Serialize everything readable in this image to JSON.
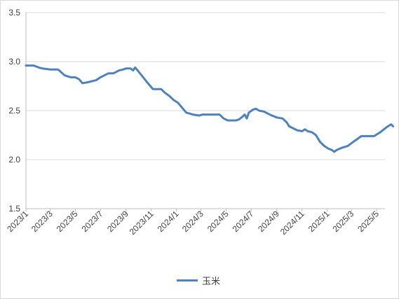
{
  "chart_data": {
    "type": "line",
    "title": "",
    "xlabel": "",
    "ylabel": "",
    "ylim": [
      1.5,
      3.5
    ],
    "y_ticks": [
      "1.5",
      "2.0",
      "2.5",
      "3.0",
      "3.5"
    ],
    "x_tick_labels": [
      "2023/1",
      "2023/3",
      "2023/5",
      "2023/7",
      "2023/9",
      "2023/11",
      "2024/1",
      "2024/3",
      "2024/5",
      "2024/7",
      "2024/9",
      "2024/11",
      "2025/1",
      "2025/3",
      "2025/5"
    ],
    "grid": "horizontal",
    "legend_position": "bottom",
    "series": [
      {
        "name": "玉米",
        "color": "#4f81bd",
        "points": [
          [
            "2023-01-01",
            2.96
          ],
          [
            "2023-01-20",
            2.96
          ],
          [
            "2023-02-01",
            2.94
          ],
          [
            "2023-02-10",
            2.93
          ],
          [
            "2023-03-01",
            2.92
          ],
          [
            "2023-03-20",
            2.92
          ],
          [
            "2023-03-28",
            2.89
          ],
          [
            "2023-04-05",
            2.86
          ],
          [
            "2023-04-20",
            2.84
          ],
          [
            "2023-05-01",
            2.84
          ],
          [
            "2023-05-10",
            2.82
          ],
          [
            "2023-05-18",
            2.78
          ],
          [
            "2023-06-01",
            2.79
          ],
          [
            "2023-06-10",
            2.8
          ],
          [
            "2023-06-20",
            2.81
          ],
          [
            "2023-07-01",
            2.84
          ],
          [
            "2023-07-20",
            2.88
          ],
          [
            "2023-08-01",
            2.88
          ],
          [
            "2023-08-15",
            2.91
          ],
          [
            "2023-08-25",
            2.92
          ],
          [
            "2023-09-01",
            2.93
          ],
          [
            "2023-09-12",
            2.93
          ],
          [
            "2023-09-18",
            2.91
          ],
          [
            "2023-09-23",
            2.94
          ],
          [
            "2023-10-01",
            2.9
          ],
          [
            "2023-10-20",
            2.8
          ],
          [
            "2023-11-05",
            2.72
          ],
          [
            "2023-11-25",
            2.72
          ],
          [
            "2023-12-05",
            2.68
          ],
          [
            "2023-12-15",
            2.65
          ],
          [
            "2023-12-25",
            2.61
          ],
          [
            "2024-01-05",
            2.58
          ],
          [
            "2024-01-15",
            2.53
          ],
          [
            "2024-01-25",
            2.48
          ],
          [
            "2024-02-10",
            2.46
          ],
          [
            "2024-02-25",
            2.45
          ],
          [
            "2024-03-05",
            2.46
          ],
          [
            "2024-03-25",
            2.46
          ],
          [
            "2024-04-15",
            2.46
          ],
          [
            "2024-04-25",
            2.42
          ],
          [
            "2024-05-05",
            2.4
          ],
          [
            "2024-05-25",
            2.4
          ],
          [
            "2024-06-01",
            2.41
          ],
          [
            "2024-06-10",
            2.44
          ],
          [
            "2024-06-15",
            2.46
          ],
          [
            "2024-06-20",
            2.42
          ],
          [
            "2024-06-25",
            2.48
          ],
          [
            "2024-07-05",
            2.51
          ],
          [
            "2024-07-12",
            2.52
          ],
          [
            "2024-07-20",
            2.5
          ],
          [
            "2024-08-01",
            2.49
          ],
          [
            "2024-08-10",
            2.47
          ],
          [
            "2024-08-20",
            2.45
          ],
          [
            "2024-09-01",
            2.43
          ],
          [
            "2024-09-15",
            2.42
          ],
          [
            "2024-09-25",
            2.38
          ],
          [
            "2024-10-01",
            2.34
          ],
          [
            "2024-10-20",
            2.3
          ],
          [
            "2024-11-01",
            2.29
          ],
          [
            "2024-11-08",
            2.31
          ],
          [
            "2024-11-15",
            2.29
          ],
          [
            "2024-11-25",
            2.28
          ],
          [
            "2024-12-05",
            2.25
          ],
          [
            "2024-12-15",
            2.18
          ],
          [
            "2024-12-25",
            2.14
          ],
          [
            "2025-01-05",
            2.11
          ],
          [
            "2025-01-12",
            2.1
          ],
          [
            "2025-01-18",
            2.08
          ],
          [
            "2025-01-25",
            2.1
          ],
          [
            "2025-02-05",
            2.12
          ],
          [
            "2025-02-20",
            2.14
          ],
          [
            "2025-03-05",
            2.18
          ],
          [
            "2025-03-25",
            2.24
          ],
          [
            "2025-04-10",
            2.24
          ],
          [
            "2025-04-25",
            2.24
          ],
          [
            "2025-05-10",
            2.28
          ],
          [
            "2025-05-25",
            2.33
          ],
          [
            "2025-06-05",
            2.36
          ],
          [
            "2025-06-10",
            2.34
          ]
        ]
      }
    ]
  }
}
